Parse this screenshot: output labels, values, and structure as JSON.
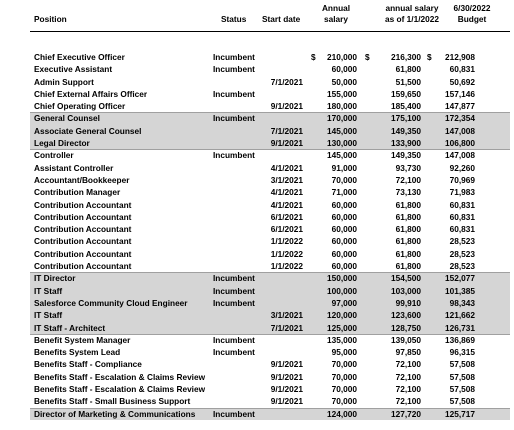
{
  "headers": {
    "position": "Position",
    "status": "Status",
    "start_date": "Start date",
    "annual_salary_1": "Annual",
    "annual_salary_2": "salary",
    "asof_1": "annual salary",
    "asof_2": "as of 1/1/2022",
    "budget_1": "6/30/2022",
    "budget_2": "Budget"
  },
  "rows": [
    {
      "position": "Chief Executive Officer",
      "status": "Incumbent",
      "start": "",
      "cur1": "$",
      "salary": "210,000",
      "cur2": "$",
      "asof": "216,300",
      "cur3": "$",
      "budget": "212,908",
      "shade": false,
      "boxed": false
    },
    {
      "position": "Executive Assistant",
      "status": "Incumbent",
      "start": "",
      "cur1": "",
      "salary": "60,000",
      "cur2": "",
      "asof": "61,800",
      "cur3": "",
      "budget": "60,831",
      "shade": false,
      "boxed": false
    },
    {
      "position": "Admin Support",
      "status": "",
      "start": "7/1/2021",
      "cur1": "",
      "salary": "50,000",
      "cur2": "",
      "asof": "51,500",
      "cur3": "",
      "budget": "50,692",
      "shade": false,
      "boxed": false
    },
    {
      "position": "Chief External Affairs Officer",
      "status": "Incumbent",
      "start": "",
      "cur1": "",
      "salary": "155,000",
      "cur2": "",
      "asof": "159,650",
      "cur3": "",
      "budget": "157,146",
      "shade": false,
      "boxed": false
    },
    {
      "position": "Chief Operating Officer",
      "status": "",
      "start": "9/1/2021",
      "cur1": "",
      "salary": "180,000",
      "cur2": "",
      "asof": "185,400",
      "cur3": "",
      "budget": "147,877",
      "shade": false,
      "boxed": false
    },
    {
      "position": "General Counsel",
      "status": "Incumbent",
      "start": "",
      "cur1": "",
      "salary": "170,000",
      "cur2": "",
      "asof": "175,100",
      "cur3": "",
      "budget": "172,354",
      "shade": true,
      "boxed": true
    },
    {
      "position": "Associate General Counsel",
      "status": "",
      "start": "7/1/2021",
      "cur1": "",
      "salary": "145,000",
      "cur2": "",
      "asof": "149,350",
      "cur3": "",
      "budget": "147,008",
      "shade": true,
      "boxed": false
    },
    {
      "position": "Legal Director",
      "status": "",
      "start": "9/1/2021",
      "cur1": "",
      "salary": "130,000",
      "cur2": "",
      "asof": "133,900",
      "cur3": "",
      "budget": "106,800",
      "shade": true,
      "boxed": false
    },
    {
      "position": "Controller",
      "status": "Incumbent",
      "start": "",
      "cur1": "",
      "salary": "145,000",
      "cur2": "",
      "asof": "149,350",
      "cur3": "",
      "budget": "147,008",
      "shade": false,
      "boxed": true
    },
    {
      "position": "Assistant Controller",
      "status": "",
      "start": "4/1/2021",
      "cur1": "",
      "salary": "91,000",
      "cur2": "",
      "asof": "93,730",
      "cur3": "",
      "budget": "92,260",
      "shade": false,
      "boxed": false
    },
    {
      "position": "Accountant/Bookkeeper",
      "status": "",
      "start": "3/1/2021",
      "cur1": "",
      "salary": "70,000",
      "cur2": "",
      "asof": "72,100",
      "cur3": "",
      "budget": "70,969",
      "shade": false,
      "boxed": false
    },
    {
      "position": "Contribution Manager",
      "status": "",
      "start": "4/1/2021",
      "cur1": "",
      "salary": "71,000",
      "cur2": "",
      "asof": "73,130",
      "cur3": "",
      "budget": "71,983",
      "shade": false,
      "boxed": false
    },
    {
      "position": "Contribution Accountant",
      "status": "",
      "start": "4/1/2021",
      "cur1": "",
      "salary": "60,000",
      "cur2": "",
      "asof": "61,800",
      "cur3": "",
      "budget": "60,831",
      "shade": false,
      "boxed": false
    },
    {
      "position": "Contribution Accountant",
      "status": "",
      "start": "6/1/2021",
      "cur1": "",
      "salary": "60,000",
      "cur2": "",
      "asof": "61,800",
      "cur3": "",
      "budget": "60,831",
      "shade": false,
      "boxed": false
    },
    {
      "position": "Contribution Accountant",
      "status": "",
      "start": "6/1/2021",
      "cur1": "",
      "salary": "60,000",
      "cur2": "",
      "asof": "61,800",
      "cur3": "",
      "budget": "60,831",
      "shade": false,
      "boxed": false
    },
    {
      "position": "Contribution Accountant",
      "status": "",
      "start": "1/1/2022",
      "cur1": "",
      "salary": "60,000",
      "cur2": "",
      "asof": "61,800",
      "cur3": "",
      "budget": "28,523",
      "shade": false,
      "boxed": false
    },
    {
      "position": "Contribution Accountant",
      "status": "",
      "start": "1/1/2022",
      "cur1": "",
      "salary": "60,000",
      "cur2": "",
      "asof": "61,800",
      "cur3": "",
      "budget": "28,523",
      "shade": false,
      "boxed": false
    },
    {
      "position": "Contribution Accountant",
      "status": "",
      "start": "1/1/2022",
      "cur1": "",
      "salary": "60,000",
      "cur2": "",
      "asof": "61,800",
      "cur3": "",
      "budget": "28,523",
      "shade": false,
      "boxed": false
    },
    {
      "position": "IT Director",
      "status": "Incumbent",
      "start": "",
      "cur1": "",
      "salary": "150,000",
      "cur2": "",
      "asof": "154,500",
      "cur3": "",
      "budget": "152,077",
      "shade": true,
      "boxed": true
    },
    {
      "position": "IT Staff",
      "status": "Incumbent",
      "start": "",
      "cur1": "",
      "salary": "100,000",
      "cur2": "",
      "asof": "103,000",
      "cur3": "",
      "budget": "101,385",
      "shade": true,
      "boxed": false
    },
    {
      "position": "Salesforce Community Cloud Engineer",
      "status": "Incumbent",
      "start": "",
      "cur1": "",
      "salary": "97,000",
      "cur2": "",
      "asof": "99,910",
      "cur3": "",
      "budget": "98,343",
      "shade": true,
      "boxed": false
    },
    {
      "position": "IT Staff",
      "status": "",
      "start": "3/1/2021",
      "cur1": "",
      "salary": "120,000",
      "cur2": "",
      "asof": "123,600",
      "cur3": "",
      "budget": "121,662",
      "shade": true,
      "boxed": false
    },
    {
      "position": "IT Staff - Architect",
      "status": "",
      "start": "7/1/2021",
      "cur1": "",
      "salary": "125,000",
      "cur2": "",
      "asof": "128,750",
      "cur3": "",
      "budget": "126,731",
      "shade": true,
      "boxed": false
    },
    {
      "position": "Benefit System Manager",
      "status": "Incumbent",
      "start": "",
      "cur1": "",
      "salary": "135,000",
      "cur2": "",
      "asof": "139,050",
      "cur3": "",
      "budget": "136,869",
      "shade": false,
      "boxed": true
    },
    {
      "position": "Benefits System Lead",
      "status": "Incumbent",
      "start": "",
      "cur1": "",
      "salary": "95,000",
      "cur2": "",
      "asof": "97,850",
      "cur3": "",
      "budget": "96,315",
      "shade": false,
      "boxed": false
    },
    {
      "position": "Benefits Staff - Compliance",
      "status": "",
      "start": "9/1/2021",
      "cur1": "",
      "salary": "70,000",
      "cur2": "",
      "asof": "72,100",
      "cur3": "",
      "budget": "57,508",
      "shade": false,
      "boxed": false
    },
    {
      "position": "Benefits Staff - Escalation & Claims Review",
      "status": "",
      "start": "9/1/2021",
      "cur1": "",
      "salary": "70,000",
      "cur2": "",
      "asof": "72,100",
      "cur3": "",
      "budget": "57,508",
      "shade": false,
      "boxed": false
    },
    {
      "position": "Benefits Staff - Escalation & Claims Review",
      "status": "",
      "start": "9/1/2021",
      "cur1": "",
      "salary": "70,000",
      "cur2": "",
      "asof": "72,100",
      "cur3": "",
      "budget": "57,508",
      "shade": false,
      "boxed": false
    },
    {
      "position": "Benefits Staff - Small Business Support",
      "status": "",
      "start": "9/1/2021",
      "cur1": "",
      "salary": "70,000",
      "cur2": "",
      "asof": "72,100",
      "cur3": "",
      "budget": "57,508",
      "shade": false,
      "boxed": false
    },
    {
      "position": "Director of Marketing & Communications",
      "status": "Incumbent",
      "start": "",
      "cur1": "",
      "salary": "124,000",
      "cur2": "",
      "asof": "127,720",
      "cur3": "",
      "budget": "125,717",
      "shade": true,
      "boxed": true
    }
  ]
}
